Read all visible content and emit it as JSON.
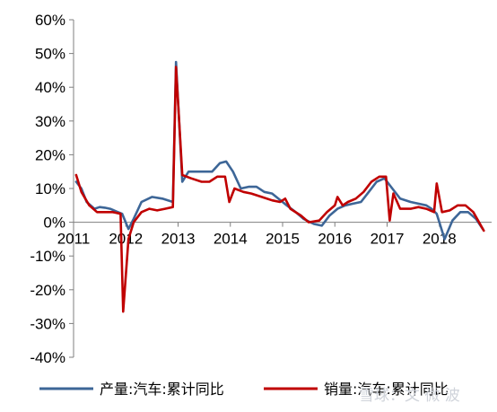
{
  "chart_data": {
    "type": "line",
    "title": "",
    "xlabel": "",
    "ylabel": "",
    "ylim": [
      -40,
      60
    ],
    "y_ticks": [
      60,
      50,
      40,
      30,
      20,
      10,
      0,
      -10,
      -20,
      -30,
      -40
    ],
    "y_tick_labels": [
      "60%",
      "50%",
      "40%",
      "30%",
      "20%",
      "10%",
      "0%",
      "-10%",
      "-20%",
      "-30%",
      "-40%"
    ],
    "x_range": [
      2011,
      2019
    ],
    "x_ticks": [
      2011,
      2012,
      2013,
      2014,
      2015,
      2016,
      2017,
      2018
    ],
    "x_tick_labels": [
      "2011",
      "2012",
      "2013",
      "2014",
      "2015",
      "2016",
      "2017",
      "2018"
    ],
    "grid": false,
    "legend_position": "bottom",
    "series": [
      {
        "name": "产量:汽车:累计同比",
        "color": "#3d6697",
        "points": [
          [
            2011.05,
            12.0
          ],
          [
            2011.15,
            10.0
          ],
          [
            2011.25,
            6.0
          ],
          [
            2011.4,
            4.0
          ],
          [
            2011.5,
            4.5
          ],
          [
            2011.6,
            4.3
          ],
          [
            2011.7,
            4.0
          ],
          [
            2011.85,
            3.0
          ],
          [
            2011.93,
            2.5
          ],
          [
            2012.05,
            -2.0
          ],
          [
            2012.15,
            1.0
          ],
          [
            2012.3,
            6.0
          ],
          [
            2012.5,
            7.5
          ],
          [
            2012.7,
            7.0
          ],
          [
            2012.9,
            6.0
          ],
          [
            2012.96,
            47.5
          ],
          [
            2013.08,
            12.0
          ],
          [
            2013.2,
            15.0
          ],
          [
            2013.35,
            15.0
          ],
          [
            2013.5,
            15.0
          ],
          [
            2013.65,
            15.0
          ],
          [
            2013.8,
            17.5
          ],
          [
            2013.92,
            18.0
          ],
          [
            2014.05,
            15.0
          ],
          [
            2014.2,
            10.0
          ],
          [
            2014.35,
            10.5
          ],
          [
            2014.5,
            10.5
          ],
          [
            2014.65,
            9.0
          ],
          [
            2014.8,
            8.5
          ],
          [
            2014.92,
            7.0
          ],
          [
            2015.08,
            5.0
          ],
          [
            2015.25,
            3.0
          ],
          [
            2015.4,
            1.0
          ],
          [
            2015.6,
            -0.5
          ],
          [
            2015.75,
            -1.0
          ],
          [
            2015.9,
            2.0
          ],
          [
            2016.05,
            4.0
          ],
          [
            2016.2,
            5.0
          ],
          [
            2016.35,
            5.5
          ],
          [
            2016.5,
            6.0
          ],
          [
            2016.65,
            9.0
          ],
          [
            2016.8,
            12.0
          ],
          [
            2016.95,
            13.0
          ],
          [
            2017.1,
            10.0
          ],
          [
            2017.25,
            7.0
          ],
          [
            2017.45,
            6.0
          ],
          [
            2017.6,
            5.5
          ],
          [
            2017.75,
            5.0
          ],
          [
            2017.85,
            4.0
          ],
          [
            2017.95,
            2.5
          ],
          [
            2018.1,
            -5.0
          ],
          [
            2018.25,
            0.5
          ],
          [
            2018.4,
            3.0
          ],
          [
            2018.55,
            3.0
          ],
          [
            2018.7,
            1.0
          ],
          [
            2018.83,
            -2.0
          ]
        ]
      },
      {
        "name": "销量:汽车:累计同比",
        "color": "#c00000",
        "points": [
          [
            2011.05,
            14.0
          ],
          [
            2011.15,
            9.0
          ],
          [
            2011.3,
            5.0
          ],
          [
            2011.45,
            3.0
          ],
          [
            2011.6,
            3.0
          ],
          [
            2011.75,
            3.0
          ],
          [
            2011.9,
            2.5
          ],
          [
            2011.95,
            -26.5
          ],
          [
            2012.05,
            -5.0
          ],
          [
            2012.15,
            0.0
          ],
          [
            2012.3,
            3.0
          ],
          [
            2012.45,
            4.0
          ],
          [
            2012.6,
            3.5
          ],
          [
            2012.75,
            4.0
          ],
          [
            2012.9,
            4.5
          ],
          [
            2012.96,
            46.0
          ],
          [
            2013.08,
            14.0
          ],
          [
            2013.25,
            13.0
          ],
          [
            2013.45,
            12.0
          ],
          [
            2013.6,
            12.0
          ],
          [
            2013.75,
            13.5
          ],
          [
            2013.9,
            13.5
          ],
          [
            2013.98,
            6.0
          ],
          [
            2014.08,
            10.0
          ],
          [
            2014.25,
            9.0
          ],
          [
            2014.4,
            8.5
          ],
          [
            2014.6,
            7.5
          ],
          [
            2014.8,
            6.5
          ],
          [
            2014.95,
            6.0
          ],
          [
            2015.05,
            7.0
          ],
          [
            2015.15,
            4.0
          ],
          [
            2015.35,
            2.0
          ],
          [
            2015.5,
            0.0
          ],
          [
            2015.7,
            0.5
          ],
          [
            2015.85,
            3.0
          ],
          [
            2016.0,
            5.0
          ],
          [
            2016.05,
            7.5
          ],
          [
            2016.15,
            5.0
          ],
          [
            2016.25,
            6.0
          ],
          [
            2016.4,
            7.0
          ],
          [
            2016.55,
            9.0
          ],
          [
            2016.7,
            12.0
          ],
          [
            2016.85,
            13.5
          ],
          [
            2016.98,
            13.5
          ],
          [
            2017.05,
            0.5
          ],
          [
            2017.12,
            8.5
          ],
          [
            2017.25,
            4.0
          ],
          [
            2017.45,
            4.0
          ],
          [
            2017.6,
            4.5
          ],
          [
            2017.75,
            4.0
          ],
          [
            2017.9,
            3.0
          ],
          [
            2017.95,
            11.5
          ],
          [
            2018.05,
            3.0
          ],
          [
            2018.2,
            3.5
          ],
          [
            2018.35,
            5.0
          ],
          [
            2018.5,
            5.0
          ],
          [
            2018.65,
            3.0
          ],
          [
            2018.85,
            -2.5
          ]
        ]
      }
    ]
  },
  "watermark": {
    "text": "雪球：文 微 波"
  }
}
